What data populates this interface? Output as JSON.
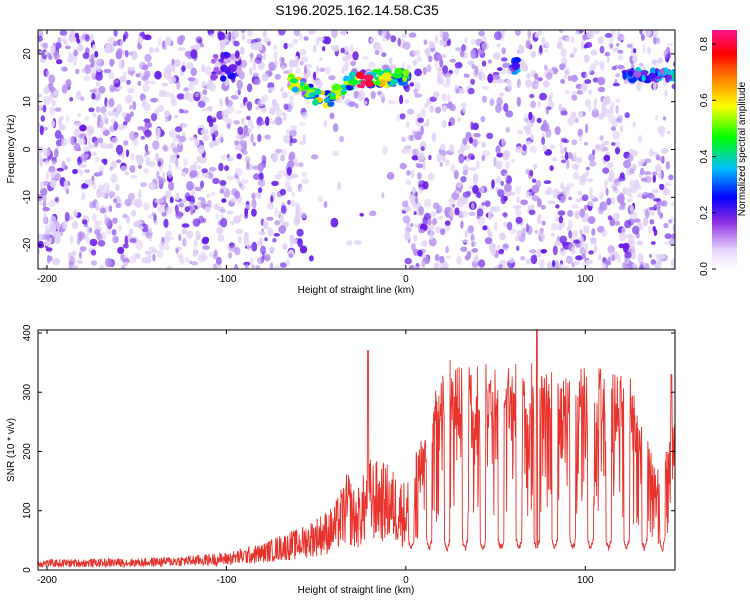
{
  "title": "S196.2025.162.14.58.C35",
  "colors": {
    "snr_line": "#e8322c",
    "axis": "#000000",
    "speckle_light": "#e2d2f6",
    "speckle_mid": "#b389ef",
    "speckle_dark": "#6a1ee8"
  },
  "chart_data": [
    {
      "type": "heatmap",
      "xlabel": "Height of straight line (km)",
      "ylabel": "Frequency (Hz)",
      "xlim": [
        -205,
        150
      ],
      "ylim": [
        -25,
        25
      ],
      "xticks": [
        -200,
        -100,
        0,
        100
      ],
      "yticks": [
        -20,
        -10,
        0,
        10,
        20
      ],
      "colorbar": {
        "label": "Normalized spectral amplitude",
        "range": [
          0,
          0.85
        ],
        "ticks": [
          "0.0",
          "0.2",
          "0.4",
          "0.6",
          "0.8"
        ],
        "colormap": [
          "#ffffff",
          "#8a2be2",
          "#0000ff",
          "#00bfff",
          "#00ff00",
          "#ffff00",
          "#ff7f00",
          "#ff0000",
          "#ff1493"
        ]
      },
      "blank_bands_km": [
        [
          -56,
          -2
        ],
        [
          -37,
          -3
        ]
      ],
      "features": [
        {
          "x_km": [
            -65,
            0
          ],
          "freq_hz": [
            10,
            15
          ],
          "peak": 0.85
        },
        {
          "x_km": [
            -108,
            -92
          ],
          "freq_hz": [
            15,
            20
          ],
          "peak": 0.2
        },
        {
          "x_km": [
            60,
            62
          ],
          "freq_hz": [
            16,
            20
          ],
          "peak": 0.4
        },
        {
          "x_km": [
            122,
            150
          ],
          "freq_hz": [
            14,
            17
          ],
          "peak": 0.5
        }
      ]
    },
    {
      "type": "line",
      "xlabel": "Height of straight line (km)",
      "ylabel": "SNR (10 * v/v)",
      "xlim": [
        -205,
        150
      ],
      "ylim": [
        0,
        405
      ],
      "xticks": [
        -200,
        -100,
        0,
        100
      ],
      "yticks": [
        0,
        100,
        200,
        300,
        400
      ],
      "envelope": {
        "x": [
          -205,
          -150,
          -120,
          -100,
          -80,
          -70,
          -60,
          -50,
          -40,
          -32,
          -28,
          -20,
          -10,
          0,
          10,
          20,
          25,
          40,
          60,
          80,
          100,
          120,
          125,
          130,
          135,
          140,
          145,
          150
        ],
        "y": [
          18,
          20,
          25,
          30,
          45,
          60,
          70,
          90,
          110,
          170,
          130,
          190,
          180,
          150,
          230,
          320,
          340,
          330,
          335,
          335,
          330,
          325,
          320,
          250,
          210,
          160,
          190,
          250
        ]
      },
      "dips_km": [
        3,
        13,
        23,
        33,
        43,
        53,
        63,
        73,
        83,
        93,
        103,
        113,
        123,
        133,
        143
      ],
      "spikes": [
        {
          "x": -21,
          "y": 370
        },
        {
          "x": 73,
          "y": 405
        },
        {
          "x": 148,
          "y": 330
        }
      ]
    }
  ]
}
